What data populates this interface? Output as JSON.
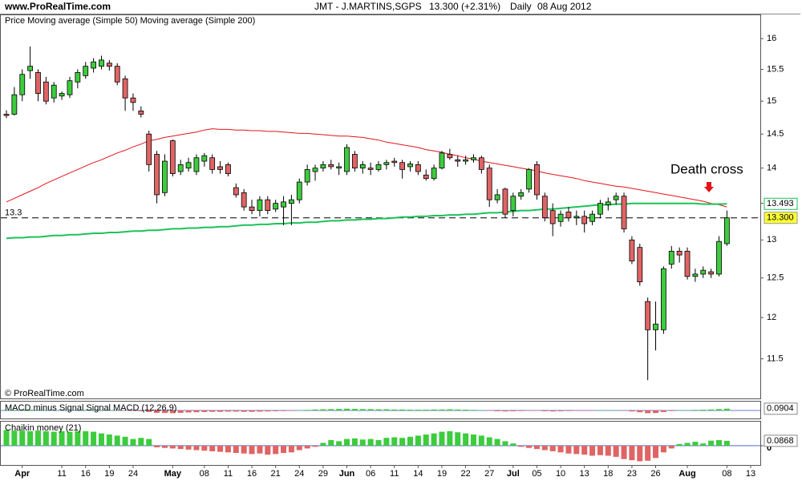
{
  "chart_data": [
    {
      "type": "candlestick",
      "site": "www.ProRealTime.com",
      "title": "JMT - J.MARTINS,SGPS",
      "last": "13.300 (+2.31%)",
      "period": "Daily",
      "date": "08 Aug 2012",
      "legend_label": "Price",
      "copyright": "© ProRealTime.com",
      "annotation": "Death cross",
      "log": true,
      "ylim": [
        11.04,
        16.39
      ],
      "yticks": [
        11.5,
        12,
        12.5,
        13,
        13.5,
        14,
        14.5,
        15,
        15.5,
        16
      ],
      "up_color": "#3dcc3d",
      "down_color": "#e06464",
      "categories": [
        null,
        null,
        "Apr",
        null,
        null,
        null,
        null,
        "11",
        null,
        null,
        "16",
        null,
        null,
        "19",
        null,
        null,
        "24",
        null,
        null,
        null,
        null,
        "May",
        null,
        null,
        null,
        "08",
        null,
        null,
        "11",
        null,
        null,
        "16",
        null,
        null,
        "21",
        null,
        null,
        "24",
        null,
        null,
        "29",
        null,
        null,
        "Jun",
        null,
        null,
        "06",
        null,
        null,
        "11",
        null,
        null,
        "14",
        null,
        null,
        "19",
        null,
        null,
        "22",
        null,
        null,
        "27",
        null,
        null,
        "Jul",
        null,
        null,
        "05",
        null,
        null,
        "10",
        null,
        null,
        "13",
        null,
        null,
        "18",
        null,
        null,
        "23",
        null,
        null,
        "26",
        null,
        null,
        null,
        "Aug",
        null,
        null,
        null,
        null,
        "08",
        null,
        null,
        "13"
      ],
      "open": [
        14.8,
        14.8,
        15.1,
        15.48,
        15.45,
        15.3,
        15.05,
        15.08,
        15.1,
        15.3,
        15.4,
        15.52,
        15.55,
        15.6,
        15.55,
        15.35,
        15.05,
        14.85,
        14.5,
        14.2,
        13.65,
        14.4,
        13.95,
        14.0,
        13.95,
        14.1,
        14.15,
        14.02,
        14.05,
        13.72,
        13.65,
        13.45,
        13.4,
        13.55,
        13.42,
        13.45,
        13.5,
        13.55,
        13.8,
        13.95,
        14.0,
        14.05,
        14.0,
        13.95,
        14.2,
        14.0,
        14.0,
        13.98,
        14.05,
        14.1,
        14.08,
        14.02,
        14.05,
        13.9,
        13.85,
        14.0,
        14.2,
        14.12,
        14.1,
        14.12,
        14.15,
        14.0,
        13.55,
        13.7,
        13.4,
        13.6,
        13.7,
        14.05,
        13.6,
        13.4,
        13.25,
        13.38,
        13.3,
        13.32,
        13.25,
        13.35,
        13.48,
        13.55,
        13.6,
        13.0,
        12.9,
        12.2,
        11.85,
        11.85,
        12.68,
        12.85,
        12.85,
        12.52,
        12.55,
        12.58,
        12.55,
        12.95,
        null,
        null,
        null
      ],
      "high": [
        14.86,
        15.22,
        15.5,
        15.87,
        15.5,
        15.38,
        15.3,
        15.15,
        15.38,
        15.5,
        15.62,
        15.68,
        15.72,
        15.65,
        15.6,
        15.4,
        15.12,
        14.92,
        14.55,
        14.25,
        14.2,
        14.42,
        14.12,
        14.15,
        14.2,
        14.22,
        14.2,
        14.1,
        14.08,
        13.78,
        13.7,
        13.55,
        13.6,
        13.6,
        13.55,
        13.6,
        13.62,
        13.85,
        14.05,
        14.05,
        14.1,
        14.12,
        14.08,
        14.35,
        14.25,
        14.1,
        14.08,
        14.1,
        14.12,
        14.15,
        14.12,
        14.1,
        14.1,
        13.98,
        14.05,
        14.25,
        14.28,
        14.18,
        14.18,
        14.2,
        14.18,
        14.05,
        13.7,
        13.72,
        13.65,
        13.7,
        14.0,
        14.1,
        13.65,
        13.5,
        13.4,
        13.45,
        13.4,
        13.4,
        13.4,
        13.55,
        13.58,
        13.65,
        13.65,
        13.05,
        12.95,
        12.25,
        12.2,
        12.65,
        12.92,
        12.9,
        12.9,
        12.62,
        12.65,
        12.62,
        13.05,
        13.4,
        null,
        null,
        null
      ],
      "low": [
        14.74,
        14.78,
        15.0,
        15.35,
        15.0,
        14.95,
        14.98,
        15.02,
        15.05,
        15.2,
        15.35,
        15.45,
        15.5,
        15.48,
        15.25,
        14.85,
        14.85,
        14.75,
        13.95,
        13.5,
        13.6,
        13.88,
        13.9,
        13.95,
        13.9,
        14.02,
        13.92,
        13.92,
        13.88,
        13.58,
        13.4,
        13.35,
        13.32,
        13.35,
        13.38,
        13.2,
        13.2,
        13.5,
        13.75,
        13.82,
        13.95,
        13.98,
        13.9,
        13.9,
        13.95,
        13.92,
        13.9,
        13.95,
        13.98,
        14.02,
        13.85,
        13.95,
        13.9,
        13.82,
        13.82,
        13.98,
        14.12,
        14.02,
        14.05,
        14.08,
        13.92,
        13.45,
        13.5,
        13.3,
        13.32,
        13.55,
        13.65,
        13.55,
        13.25,
        13.05,
        13.18,
        13.25,
        13.2,
        13.1,
        13.2,
        13.3,
        13.4,
        13.48,
        13.1,
        12.68,
        12.4,
        11.25,
        11.6,
        11.8,
        12.62,
        12.7,
        12.48,
        12.45,
        12.5,
        12.5,
        12.52,
        12.92,
        null,
        null,
        null
      ],
      "close": [
        14.78,
        15.1,
        15.42,
        15.55,
        15.12,
        15.0,
        15.25,
        15.12,
        15.32,
        15.45,
        15.55,
        15.62,
        15.65,
        15.55,
        15.3,
        15.05,
        14.98,
        14.8,
        14.05,
        13.62,
        14.1,
        13.92,
        14.05,
        14.08,
        14.15,
        14.18,
        13.98,
        13.98,
        13.92,
        13.62,
        13.45,
        13.4,
        13.55,
        13.4,
        13.5,
        13.52,
        13.55,
        13.8,
        13.98,
        14.0,
        14.05,
        14.02,
        14.02,
        14.3,
        14.0,
        14.05,
        13.98,
        14.05,
        14.08,
        14.08,
        13.98,
        14.06,
        13.95,
        13.85,
        14.0,
        14.22,
        14.15,
        14.1,
        14.12,
        14.15,
        13.98,
        13.55,
        13.62,
        13.35,
        13.6,
        13.65,
        13.98,
        13.62,
        13.3,
        13.22,
        13.35,
        13.3,
        13.32,
        13.22,
        13.35,
        13.5,
        13.52,
        13.6,
        13.15,
        12.72,
        12.45,
        11.85,
        11.92,
        12.62,
        12.85,
        12.8,
        12.52,
        12.55,
        12.6,
        12.55,
        12.98,
        13.3,
        null,
        null,
        null
      ],
      "series": [
        {
          "name": "Moving average (Simple 50)",
          "color": "#e3141b",
          "values": [
            13.52,
            13.57,
            13.62,
            13.67,
            13.72,
            13.78,
            13.83,
            13.88,
            13.93,
            13.98,
            14.03,
            14.08,
            14.12,
            14.17,
            14.22,
            14.26,
            14.31,
            14.35,
            14.4,
            14.42,
            14.45,
            14.47,
            14.49,
            14.51,
            14.53,
            14.56,
            14.58,
            14.57,
            14.57,
            14.56,
            14.56,
            14.55,
            14.55,
            14.54,
            14.54,
            14.53,
            14.52,
            14.51,
            14.51,
            14.5,
            14.49,
            14.48,
            14.47,
            14.47,
            14.46,
            14.45,
            14.43,
            14.41,
            14.38,
            14.36,
            14.34,
            14.32,
            14.3,
            14.27,
            14.25,
            14.23,
            14.2,
            14.18,
            14.15,
            14.13,
            14.1,
            14.08,
            14.06,
            14.04,
            14.02,
            14.0,
            13.98,
            13.96,
            13.93,
            13.91,
            13.89,
            13.87,
            13.85,
            13.82,
            13.8,
            13.78,
            13.76,
            13.74,
            13.73,
            13.71,
            13.69,
            13.67,
            13.65,
            13.63,
            13.61,
            13.59,
            13.57,
            13.55,
            13.53,
            13.5,
            13.48,
            13.45,
            null,
            null,
            null
          ]
        },
        {
          "name": "Moving average (Simple 200)",
          "color": "#1ec25a",
          "values": [
            13.02,
            13.03,
            13.03,
            13.04,
            13.04,
            13.05,
            13.06,
            13.06,
            13.07,
            13.07,
            13.08,
            13.09,
            13.09,
            13.1,
            13.1,
            13.11,
            13.12,
            13.12,
            13.13,
            13.13,
            13.14,
            13.15,
            13.15,
            13.16,
            13.16,
            13.17,
            13.17,
            13.18,
            13.18,
            13.19,
            13.2,
            13.2,
            13.21,
            13.21,
            13.22,
            13.22,
            13.23,
            13.23,
            13.24,
            13.24,
            13.25,
            13.26,
            13.26,
            13.27,
            13.27,
            13.28,
            13.28,
            13.29,
            13.29,
            13.3,
            13.31,
            13.31,
            13.32,
            13.32,
            13.33,
            13.33,
            13.34,
            13.34,
            13.35,
            13.35,
            13.36,
            13.37,
            13.37,
            13.38,
            13.39,
            13.4,
            13.4,
            13.41,
            13.42,
            13.42,
            13.43,
            13.44,
            13.45,
            13.46,
            13.47,
            13.48,
            13.48,
            13.49,
            13.49,
            13.5,
            13.5,
            13.5,
            13.5,
            13.5,
            13.5,
            13.5,
            13.5,
            13.5,
            13.49,
            13.49,
            13.49,
            13.493,
            null,
            null,
            null
          ]
        }
      ],
      "reference_line": {
        "value": 13.3,
        "label": "13.3"
      },
      "markers": [
        {
          "value": 13.493,
          "label": "13.493",
          "color": "#ffffff",
          "border": "#1ec25a"
        },
        {
          "value": 13.3,
          "label": "13.300",
          "color": "#ffff33",
          "border": "#999999"
        }
      ]
    },
    {
      "type": "bar",
      "legend": [
        {
          "name": "MACD minus Signal",
          "color": "#3a4fc4"
        },
        {
          "name": "Signal",
          "color": "#e3141b"
        },
        {
          "name": "MACD (12,26,9)",
          "color": "#3a4fc4"
        }
      ],
      "ylim": [
        -0.45,
        0.45
      ],
      "up_color": "#3dcc3d",
      "down_color": "#e06464",
      "values": [
        0.03,
        0.03,
        0.04,
        0.04,
        0.03,
        0.02,
        0.02,
        0.02,
        0.02,
        0.03,
        0.03,
        0.03,
        0.02,
        0.01,
        0.0,
        -0.02,
        -0.03,
        -0.04,
        -0.08,
        -0.12,
        -0.13,
        -0.14,
        -0.12,
        -0.1,
        -0.09,
        -0.08,
        -0.07,
        -0.07,
        -0.06,
        -0.06,
        -0.07,
        -0.07,
        -0.06,
        -0.05,
        -0.04,
        -0.03,
        -0.02,
        0.0,
        0.03,
        0.05,
        0.06,
        0.07,
        0.08,
        0.09,
        0.08,
        0.07,
        0.07,
        0.06,
        0.06,
        0.05,
        0.05,
        0.04,
        0.04,
        0.04,
        0.05,
        0.05,
        0.06,
        0.05,
        0.04,
        0.03,
        0.02,
        -0.01,
        -0.04,
        -0.05,
        -0.04,
        -0.03,
        -0.01,
        -0.02,
        -0.04,
        -0.05,
        -0.04,
        -0.03,
        -0.02,
        -0.02,
        -0.01,
        0.0,
        0.01,
        0.01,
        -0.01,
        -0.05,
        -0.09,
        -0.14,
        -0.13,
        -0.08,
        -0.03,
        0.0,
        0.02,
        0.03,
        0.04,
        0.05,
        0.07,
        0.0904,
        null,
        null,
        null
      ],
      "marker": {
        "value": 0.0904,
        "label": "0.0904"
      }
    },
    {
      "type": "bar",
      "legend": [
        {
          "name": "Chaikin money (21)",
          "color": "#1ec25a"
        }
      ],
      "ylim": [
        -0.36,
        0.43
      ],
      "yticks": [
        0
      ],
      "up_color": "#3dcc3d",
      "down_color": "#e06464",
      "values": [
        0.28,
        0.27,
        0.27,
        0.26,
        0.27,
        0.26,
        0.25,
        0.26,
        0.25,
        0.26,
        0.26,
        0.25,
        0.22,
        0.2,
        0.18,
        0.16,
        0.12,
        0.14,
        0.12,
        -0.03,
        -0.04,
        -0.05,
        -0.06,
        -0.07,
        -0.08,
        -0.09,
        -0.1,
        -0.11,
        -0.12,
        -0.13,
        -0.14,
        -0.15,
        -0.14,
        -0.16,
        -0.15,
        -0.13,
        -0.12,
        -0.08,
        -0.05,
        -0.02,
        0.05,
        0.1,
        0.08,
        0.12,
        0.13,
        0.11,
        0.12,
        0.1,
        0.14,
        0.15,
        0.14,
        0.16,
        0.18,
        0.2,
        0.22,
        0.25,
        0.26,
        0.24,
        0.22,
        0.2,
        0.18,
        0.15,
        0.12,
        0.08,
        0.04,
        -0.02,
        -0.04,
        -0.06,
        -0.08,
        -0.1,
        -0.12,
        -0.14,
        -0.15,
        -0.16,
        -0.18,
        -0.17,
        -0.18,
        -0.2,
        -0.24,
        -0.26,
        -0.28,
        -0.27,
        -0.22,
        -0.12,
        -0.05,
        0.03,
        0.05,
        0.07,
        0.04,
        0.09,
        0.1,
        0.0868,
        null,
        null,
        null
      ],
      "marker": {
        "value": 0.0868,
        "label": "0.0868"
      }
    }
  ]
}
